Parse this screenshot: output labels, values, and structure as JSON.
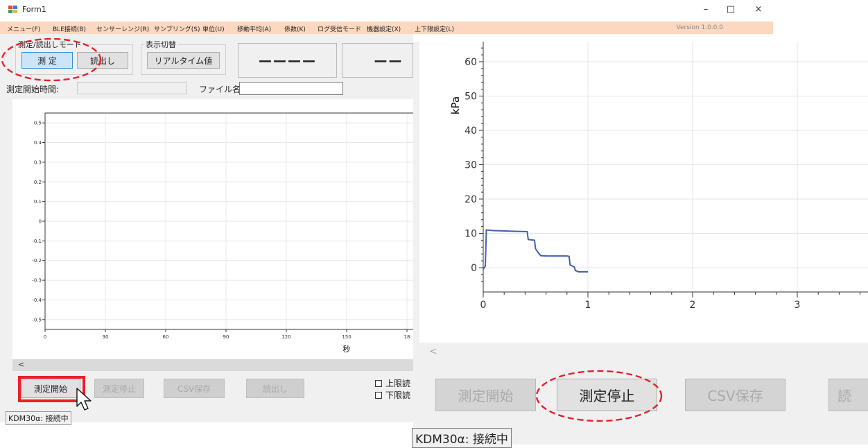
{
  "window": {
    "title": "Form1",
    "controls": {
      "minimize": "–",
      "maximize": "□",
      "close": "×"
    },
    "version": "Version 1.0.0.0"
  },
  "menu": [
    "メニュー(F)",
    "BLE接続(B)",
    "センサーレンジ(R)",
    "サンプリング(S)",
    "単位(U)",
    "移動平均(A)",
    "係数(K)",
    "ログ受信モード",
    "機器設定(X)",
    "上下限設定(L)"
  ],
  "mode_group": {
    "label": "測定/読出しモード",
    "measure": "測 定",
    "read": "読出し"
  },
  "display_group": {
    "label": "表示切替",
    "realtime": "リアルタイム値"
  },
  "readouts": {
    "main": "ーーーー",
    "secondary": "ーー"
  },
  "start_time": {
    "label": "測定開始時間:",
    "value": ""
  },
  "file_name": {
    "label": "ファイル名:",
    "value": ""
  },
  "small_chart": {
    "xlabel": "秒"
  },
  "small_buttons": {
    "start": "測定開始",
    "stop": "測定停止",
    "csv": "CSV保存",
    "read": "読出し"
  },
  "limits": {
    "upper": "上限読",
    "lower": "下限読"
  },
  "status": "KDM30α: 接続中",
  "big_buttons": {
    "start": "測定開始",
    "stop": "測定停止",
    "csv": "CSV保存",
    "read": "読"
  },
  "scroll_left_glyph": "<",
  "colors": {
    "menubar": "#fbd8bf",
    "series": "#4060b0",
    "highlight_red": "#e8202a",
    "active_button": "#cce4f7"
  },
  "chart_data": [
    {
      "type": "line",
      "title": "",
      "xlabel": "秒",
      "ylabel": "",
      "x_ticks": [
        "0",
        "30",
        "60",
        "90",
        "120",
        "150",
        "18"
      ],
      "y_ticks": [
        "0.5",
        "0.4",
        "0.3",
        "0.2",
        "0.1",
        "0",
        "-0.1",
        "-0.2",
        "-0.3",
        "-0.4",
        "-0.5"
      ],
      "xlim": [
        0,
        180
      ],
      "ylim": [
        -0.55,
        0.55
      ],
      "grid": true,
      "series": []
    },
    {
      "type": "line",
      "title": "",
      "xlabel": "",
      "ylabel": "kPa",
      "x_ticks": [
        "0",
        "1",
        "2",
        "3"
      ],
      "y_ticks": [
        "60",
        "50",
        "40",
        "30",
        "20",
        "10",
        "0"
      ],
      "xlim": [
        0,
        3.6
      ],
      "ylim": [
        -6,
        66
      ],
      "grid": true,
      "series": [
        {
          "x": [
            0.0,
            0.02,
            0.03,
            0.1,
            0.2,
            0.3,
            0.42,
            0.43,
            0.49,
            0.5,
            0.53,
            0.55,
            0.6,
            0.7,
            0.8,
            0.82,
            0.83,
            0.87,
            0.88,
            0.91,
            1.0
          ],
          "y": [
            -0.5,
            0.5,
            11,
            10.8,
            10.7,
            10.6,
            10.5,
            8.2,
            8.0,
            5.5,
            4.2,
            3.5,
            3.4,
            3.4,
            3.4,
            3.3,
            0.8,
            0.2,
            -0.8,
            -1.2,
            -1.2
          ]
        }
      ]
    }
  ]
}
